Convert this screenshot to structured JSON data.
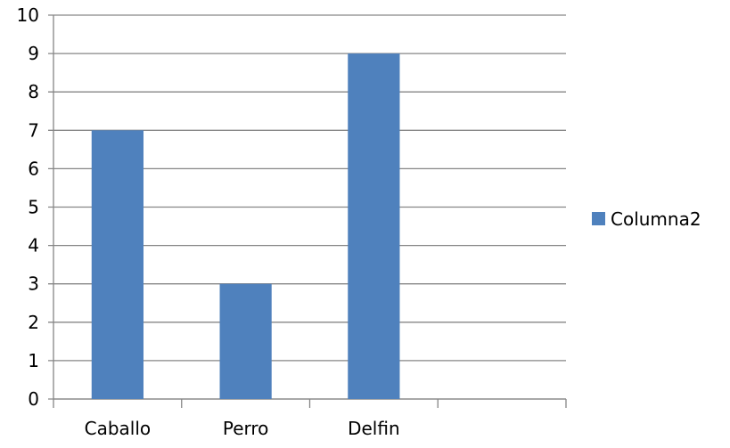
{
  "chart_data": {
    "type": "bar",
    "categories": [
      "Caballo",
      "Perro",
      "Delfin",
      ""
    ],
    "series": [
      {
        "name": "Columna2",
        "values": [
          7,
          3,
          9,
          null
        ],
        "color": "#4f81bd"
      }
    ],
    "ylim": [
      0,
      10
    ],
    "yticks": [
      0,
      1,
      2,
      3,
      4,
      5,
      6,
      7,
      8,
      9,
      10
    ],
    "grid": true,
    "legend_position": "right"
  }
}
